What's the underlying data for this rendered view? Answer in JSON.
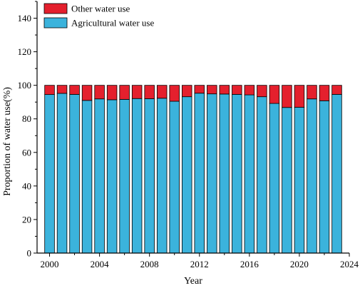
{
  "chart_data": {
    "type": "bar",
    "stacked": true,
    "xlabel": "Year",
    "ylabel": "Proportion of water use(%)",
    "xlim": [
      1999,
      2024
    ],
    "ylim": [
      0,
      150
    ],
    "xticks": [
      2000,
      2004,
      2008,
      2012,
      2016,
      2020,
      2024
    ],
    "yticks": [
      0,
      20,
      40,
      60,
      80,
      100,
      120,
      140
    ],
    "legend_position": "top-left",
    "x": [
      2000,
      2001,
      2002,
      2003,
      2004,
      2005,
      2006,
      2007,
      2008,
      2009,
      2010,
      2011,
      2012,
      2013,
      2014,
      2015,
      2016,
      2017,
      2018,
      2019,
      2020,
      2021,
      2022,
      2023
    ],
    "series": [
      {
        "name": "Agricultural water use",
        "color": "#3bb3dc",
        "values": [
          94.5,
          95.2,
          94.6,
          91.0,
          91.9,
          91.4,
          91.6,
          92.1,
          92.0,
          92.3,
          90.5,
          93.2,
          95.3,
          94.9,
          94.8,
          94.6,
          94.3,
          93.2,
          89.2,
          86.8,
          86.9,
          91.9,
          90.8,
          94.6
        ]
      },
      {
        "name": "Other water use",
        "color": "#e4202d",
        "values": [
          5.5,
          4.8,
          5.4,
          9.0,
          8.1,
          8.6,
          8.4,
          7.9,
          8.0,
          7.7,
          9.5,
          6.8,
          4.7,
          5.1,
          5.2,
          5.4,
          5.7,
          6.8,
          10.8,
          13.2,
          13.1,
          8.1,
          9.2,
          5.4
        ]
      }
    ]
  }
}
